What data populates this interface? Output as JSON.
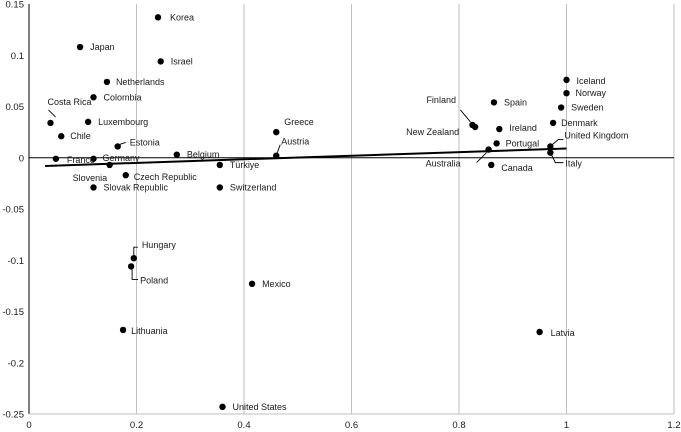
{
  "chart_data": {
    "type": "scatter",
    "title": "",
    "xlabel": "",
    "ylabel": "",
    "xlim": [
      0,
      1.2
    ],
    "ylim": [
      -0.25,
      0.15
    ],
    "x_ticks": [
      "0",
      "0.2",
      "0.4",
      "0.6",
      "0.8",
      "1",
      "1.2"
    ],
    "y_ticks": [
      "0.15",
      "0.1",
      "0.05",
      "0",
      "-0.05",
      "-0.1",
      "-0.15",
      "-0.2",
      "-0.25"
    ],
    "grid": "vertical",
    "trendline": {
      "x": [
        0.03,
        1.0
      ],
      "y": [
        -0.008,
        0.009
      ]
    },
    "points": [
      {
        "label": "Korea",
        "x": 0.24,
        "y": 0.137
      },
      {
        "label": "Japan",
        "x": 0.095,
        "y": 0.108
      },
      {
        "label": "Israel",
        "x": 0.245,
        "y": 0.094
      },
      {
        "label": "Netherlands",
        "x": 0.145,
        "y": 0.074
      },
      {
        "label": "Colombia",
        "x": 0.12,
        "y": 0.059
      },
      {
        "label": "Costa Rica",
        "x": 0.04,
        "y": 0.034
      },
      {
        "label": "Chile",
        "x": 0.06,
        "y": 0.021
      },
      {
        "label": "Luxembourg",
        "x": 0.11,
        "y": 0.035
      },
      {
        "label": "Estonia",
        "x": 0.165,
        "y": 0.011
      },
      {
        "label": "France",
        "x": 0.05,
        "y": -0.001
      },
      {
        "label": "Germany",
        "x": 0.12,
        "y": -0.001
      },
      {
        "label": "Slovenia",
        "x": 0.15,
        "y": -0.007
      },
      {
        "label": "Czech Republic",
        "x": 0.18,
        "y": -0.017
      },
      {
        "label": "Slovak Republic",
        "x": 0.12,
        "y": -0.029
      },
      {
        "label": "Belgium",
        "x": 0.275,
        "y": 0.003
      },
      {
        "label": "Türkiye",
        "x": 0.355,
        "y": -0.007
      },
      {
        "label": "Switzerland",
        "x": 0.355,
        "y": -0.029
      },
      {
        "label": "Greece",
        "x": 0.46,
        "y": 0.025
      },
      {
        "label": "Austria",
        "x": 0.46,
        "y": 0.002
      },
      {
        "label": "Hungary",
        "x": 0.195,
        "y": -0.098
      },
      {
        "label": "Poland",
        "x": 0.19,
        "y": -0.106
      },
      {
        "label": "Mexico",
        "x": 0.415,
        "y": -0.123
      },
      {
        "label": "Lithuania",
        "x": 0.175,
        "y": -0.168
      },
      {
        "label": "United States",
        "x": 0.36,
        "y": -0.243
      },
      {
        "label": "Finland",
        "x": 0.825,
        "y": 0.032
      },
      {
        "label": "New Zealand",
        "x": 0.83,
        "y": 0.03
      },
      {
        "label": "Spain",
        "x": 0.865,
        "y": 0.054
      },
      {
        "label": "Ireland",
        "x": 0.875,
        "y": 0.028
      },
      {
        "label": "Portugal",
        "x": 0.87,
        "y": 0.014
      },
      {
        "label": "Australia",
        "x": 0.855,
        "y": 0.008
      },
      {
        "label": "Canada",
        "x": 0.86,
        "y": -0.007
      },
      {
        "label": "Iceland",
        "x": 1.0,
        "y": 0.076
      },
      {
        "label": "Norway",
        "x": 1.0,
        "y": 0.063
      },
      {
        "label": "Sweden",
        "x": 0.99,
        "y": 0.049
      },
      {
        "label": "Denmark",
        "x": 0.975,
        "y": 0.034
      },
      {
        "label": "United Kingdom",
        "x": 0.97,
        "y": 0.011
      },
      {
        "label": "Italy",
        "x": 0.97,
        "y": 0.005
      },
      {
        "label": "Latvia",
        "x": 0.95,
        "y": -0.17
      }
    ]
  }
}
